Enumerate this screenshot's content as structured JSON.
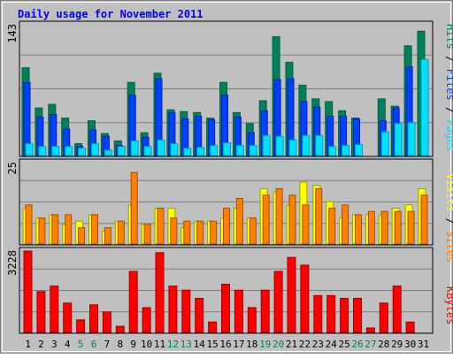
{
  "title": "Daily usage for November 2011",
  "colors": {
    "frame_bg": "#c0c0c0",
    "plot_bg": "#c0c0c0",
    "title": "#0000ff",
    "hits": "#00805c",
    "files": "#0040ff",
    "pages": "#00e0ff",
    "visits": "#ffff00",
    "sites": "#ff8000",
    "kbytes": "#ff0000",
    "weekend_label": "#00805c",
    "weekday_label": "#000000"
  },
  "days": [
    1,
    2,
    3,
    4,
    5,
    6,
    7,
    8,
    9,
    10,
    11,
    12,
    13,
    14,
    15,
    16,
    17,
    18,
    19,
    20,
    21,
    22,
    23,
    24,
    25,
    26,
    27,
    28,
    29,
    30,
    31
  ],
  "weekend_days": [
    5,
    6,
    12,
    13,
    19,
    20,
    26,
    27
  ],
  "chart_data": [
    {
      "type": "bar",
      "name": "hits-files-pages",
      "ymax_label": "143",
      "ymax": 143,
      "right_label": {
        "pages": "Pages",
        "files": "Files",
        "hits": "Hits",
        "sep": " / "
      },
      "x": [
        1,
        2,
        3,
        4,
        5,
        6,
        7,
        8,
        9,
        10,
        11,
        12,
        13,
        14,
        15,
        16,
        17,
        18,
        19,
        20,
        21,
        22,
        23,
        24,
        25,
        26,
        27,
        28,
        29,
        30,
        31
      ],
      "series": [
        {
          "name": "Hits",
          "values": [
            96,
            52,
            56,
            41,
            13,
            38,
            24,
            16,
            80,
            25,
            90,
            50,
            48,
            47,
            41,
            80,
            47,
            35,
            60,
            130,
            102,
            77,
            62,
            59,
            49,
            41,
            0,
            62,
            54,
            120,
            136
          ]
        },
        {
          "name": "Files",
          "values": [
            80,
            42,
            45,
            29,
            10,
            28,
            21,
            11,
            66,
            20,
            84,
            47,
            40,
            43,
            39,
            66,
            42,
            25,
            49,
            83,
            84,
            59,
            53,
            43,
            43,
            40,
            0,
            38,
            52,
            97,
            0
          ]
        },
        {
          "name": "Pages",
          "values": [
            13,
            10,
            10,
            10,
            8,
            13,
            6,
            10,
            16,
            10,
            17,
            13,
            8,
            9,
            11,
            14,
            11,
            11,
            22,
            21,
            17,
            22,
            22,
            10,
            11,
            12,
            0,
            26,
            35,
            36,
            105
          ]
        }
      ]
    },
    {
      "type": "bar",
      "name": "visits-sites",
      "ymax_label": "25",
      "ymax": 25,
      "right_label": {
        "sites": "Sites",
        "visits": "Visits",
        "sep": " / "
      },
      "x": [
        1,
        2,
        3,
        4,
        5,
        6,
        7,
        8,
        9,
        10,
        11,
        12,
        13,
        14,
        15,
        16,
        17,
        18,
        19,
        20,
        21,
        22,
        23,
        24,
        25,
        26,
        27,
        28,
        29,
        30,
        31
      ],
      "series": [
        {
          "name": "Visits",
          "values": [
            11,
            8,
            9,
            6,
            7,
            9,
            4,
            7,
            12,
            6,
            11,
            11,
            5,
            7,
            7,
            8,
            11,
            8,
            17,
            16,
            12,
            19,
            18,
            13,
            8,
            9,
            9,
            9,
            11,
            12,
            17
          ]
        },
        {
          "name": "Sites",
          "values": [
            12,
            8,
            9,
            9,
            5,
            9,
            5,
            7,
            22,
            6,
            11,
            8,
            7,
            7,
            7,
            11,
            14,
            8,
            15,
            17,
            15,
            12,
            17,
            11,
            12,
            9,
            10,
            10,
            10,
            10,
            15
          ]
        }
      ]
    },
    {
      "type": "bar",
      "name": "kbytes",
      "ymax_label": "3228",
      "ymax": 3228,
      "right_label": {
        "kbytes": "KBytes"
      },
      "x": [
        1,
        2,
        3,
        4,
        5,
        6,
        7,
        8,
        9,
        10,
        11,
        12,
        13,
        14,
        15,
        16,
        17,
        18,
        19,
        20,
        21,
        22,
        23,
        24,
        25,
        26,
        27,
        28,
        29,
        30,
        31
      ],
      "series": [
        {
          "name": "KBytes",
          "values": [
            3228,
            1622,
            1839,
            1164,
            497,
            1094,
            811,
            242,
            2420,
            983,
            3164,
            1839,
            1677,
            1352,
            412,
            1912,
            1677,
            983,
            1677,
            2420,
            2975,
            2668,
            1460,
            1460,
            1352,
            1352,
            176,
            1164,
            1839,
            412,
            0
          ]
        }
      ]
    }
  ]
}
